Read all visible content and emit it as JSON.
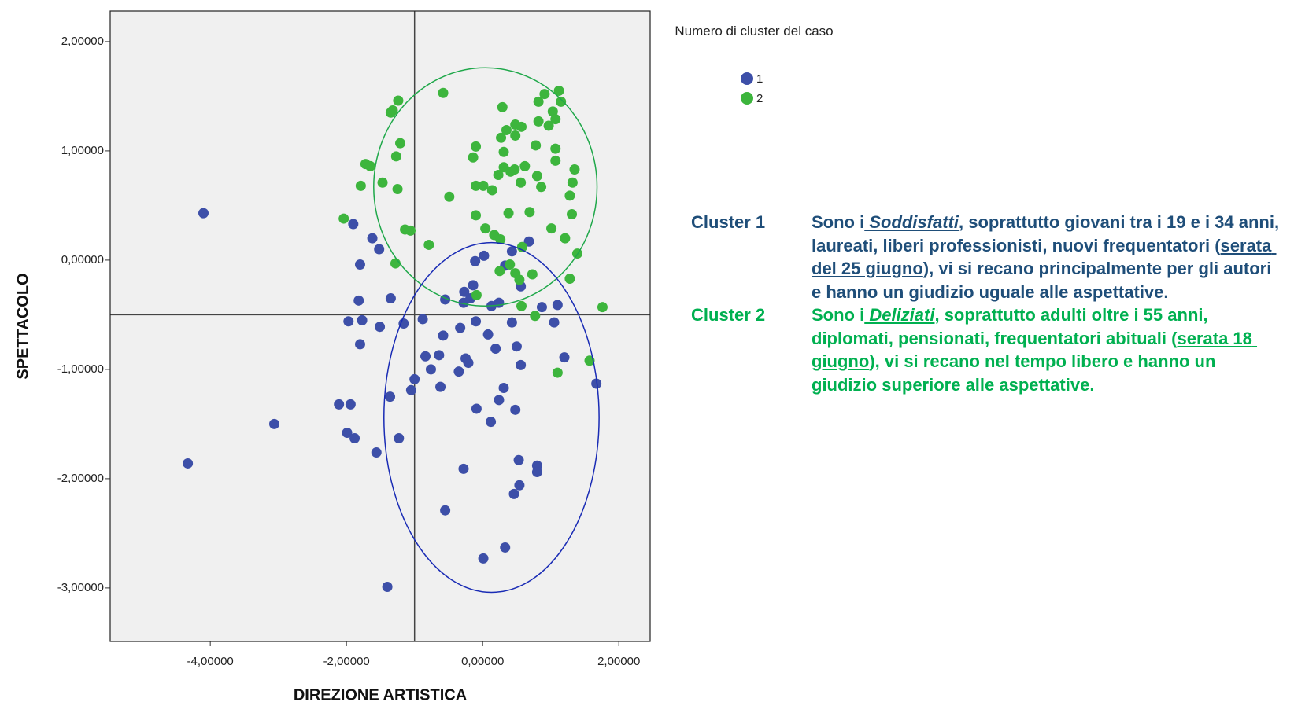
{
  "chart_data": {
    "type": "scatter",
    "xlabel": "DIREZIONE ARTISTICA",
    "ylabel": "SPETTACOLO",
    "xlim": [
      -5.47,
      2.46
    ],
    "ylim": [
      -3.49,
      2.28
    ],
    "xticks": [
      {
        "value": -4,
        "label": "-4,00000"
      },
      {
        "value": -2,
        "label": "-2,00000"
      },
      {
        "value": 0,
        "label": "0,00000"
      },
      {
        "value": 2,
        "label": "2,00000"
      }
    ],
    "yticks": [
      {
        "value": -3,
        "label": "-3,00000"
      },
      {
        "value": -2,
        "label": "-2,00000"
      },
      {
        "value": -1,
        "label": "-1,00000"
      },
      {
        "value": 0,
        "label": "0,00000"
      },
      {
        "value": 1,
        "label": "1,00000"
      },
      {
        "value": 2,
        "label": "2,00000"
      }
    ],
    "reference_lines": {
      "x": -1,
      "y": -0.5,
      "color": "#444444"
    },
    "legend_title": "Numero di cluster del caso",
    "series": [
      {
        "name": "1",
        "color": "#3d4fa8",
        "x": [
          -4.1,
          -4.33,
          -3.06,
          -1.4,
          -1.9,
          -1.62,
          -1.52,
          -1.8,
          -1.82,
          -1.77,
          -1.97,
          -1.8,
          -2.11,
          -1.94,
          -1.99,
          -1.88,
          -1.56,
          -1.35,
          -1.51,
          -1.16,
          -1.36,
          -1.23,
          -1.05,
          -0.88,
          -0.84,
          -1.0,
          -0.58,
          -0.76,
          -0.64,
          -0.62,
          -0.35,
          -0.21,
          -0.25,
          -0.55,
          -0.28,
          -0.18,
          -0.11,
          0.02,
          -0.14,
          -0.27,
          -0.1,
          0.08,
          0.19,
          0.24,
          0.33,
          0.43,
          0.68,
          0.56,
          0.43,
          0.5,
          0.56,
          0.31,
          0.24,
          -0.09,
          0.12,
          0.48,
          0.53,
          0.54,
          0.46,
          -0.28,
          -0.55,
          0.01,
          0.33,
          0.8,
          0.8,
          0.87,
          1.1,
          1.05,
          1.2,
          1.67,
          0.13,
          -0.33
        ],
        "y": [
          0.43,
          -1.86,
          -1.5,
          -2.99,
          0.33,
          0.2,
          0.1,
          -0.04,
          -0.37,
          -0.55,
          -0.56,
          -0.77,
          -1.32,
          -1.32,
          -1.58,
          -1.63,
          -1.76,
          -0.35,
          -0.61,
          -0.58,
          -1.25,
          -1.63,
          -1.19,
          -0.54,
          -0.88,
          -1.09,
          -0.69,
          -1.0,
          -0.87,
          -1.16,
          -1.02,
          -0.94,
          -0.9,
          -0.36,
          -0.39,
          -0.35,
          -0.01,
          0.04,
          -0.23,
          -0.29,
          -0.56,
          -0.68,
          -0.81,
          -0.39,
          -0.05,
          0.08,
          0.17,
          -0.24,
          -0.57,
          -0.79,
          -0.96,
          -1.17,
          -1.28,
          -1.36,
          -1.48,
          -1.37,
          -1.83,
          -2.06,
          -2.14,
          -1.91,
          -2.29,
          -2.73,
          -2.63,
          -1.88,
          -1.94,
          -0.43,
          -0.41,
          -0.57,
          -0.89,
          -1.13,
          -0.42,
          -0.62
        ]
      },
      {
        "name": "2",
        "color": "#3db53d",
        "x": [
          -1.72,
          -1.65,
          -1.47,
          -1.79,
          -1.25,
          -1.21,
          -1.27,
          -1.32,
          -1.24,
          -1.35,
          -2.04,
          -1.14,
          -1.06,
          -1.28,
          -0.79,
          -0.58,
          -0.49,
          -0.1,
          -0.14,
          -0.1,
          0.01,
          0.14,
          -0.1,
          0.04,
          0.29,
          0.27,
          0.35,
          0.48,
          0.57,
          0.48,
          0.31,
          0.31,
          0.23,
          0.41,
          0.56,
          0.62,
          0.8,
          0.86,
          0.69,
          0.38,
          0.17,
          0.26,
          0.4,
          0.58,
          0.73,
          0.48,
          0.25,
          -0.09,
          0.57,
          0.77,
          1.01,
          1.39,
          1.31,
          1.28,
          1.32,
          1.35,
          1.12,
          1.03,
          1.15,
          1.07,
          0.97,
          0.82,
          0.78,
          1.07,
          1.07,
          1.76,
          1.57,
          1.1,
          1.21,
          1.28,
          0.54,
          0.47,
          0.82,
          0.91
        ],
        "y": [
          0.88,
          0.86,
          0.71,
          0.68,
          0.65,
          1.07,
          0.95,
          1.37,
          1.46,
          1.35,
          0.38,
          0.28,
          0.27,
          -0.03,
          0.14,
          1.53,
          0.58,
          1.04,
          0.94,
          0.68,
          0.68,
          0.64,
          0.41,
          0.29,
          1.4,
          1.12,
          1.19,
          1.24,
          1.22,
          1.14,
          0.99,
          0.85,
          0.78,
          0.81,
          0.71,
          0.86,
          0.77,
          0.67,
          0.44,
          0.43,
          0.23,
          0.19,
          -0.04,
          0.12,
          -0.13,
          -0.12,
          -0.1,
          -0.32,
          -0.42,
          -0.51,
          0.29,
          0.06,
          0.42,
          0.59,
          0.71,
          0.83,
          1.55,
          1.36,
          1.45,
          1.29,
          1.23,
          1.27,
          1.05,
          1.02,
          0.91,
          -0.43,
          -0.92,
          -1.03,
          0.2,
          -0.17,
          -0.18,
          0.83,
          1.45,
          1.52
        ]
      }
    ],
    "ellipses": [
      {
        "cx": 0.04,
        "cy": 0.67,
        "rx": 1.64,
        "ry": 1.09,
        "color": "#1fa84a"
      },
      {
        "cx": 0.13,
        "cy": -1.44,
        "rx": 1.58,
        "ry": 1.6,
        "color": "#1a2cb5"
      }
    ],
    "annotations": [
      {
        "label": "Cluster 1",
        "color": "#1f4e79",
        "segments": [
          {
            "text": "Sono i",
            "style": "plain"
          },
          {
            "text": " Soddisfatti",
            "style": "italic-underline"
          },
          {
            "text": ", soprattutto giovani tra i 19 e i 34 anni, laureati, liberi professionisti, nuovi frequentatori (",
            "style": "plain"
          },
          {
            "text": "serata del 25 giugno",
            "style": "underline"
          },
          {
            "text": "), vi si recano principalmente per gli autori e hanno un giudizio uguale alle aspettative.",
            "style": "plain"
          }
        ]
      },
      {
        "label": "Cluster 2",
        "color": "#00b050",
        "segments": [
          {
            "text": "Sono i",
            "style": "plain"
          },
          {
            "text": " Deliziati",
            "style": "italic-underline"
          },
          {
            "text": ", soprattutto adulti oltre i 55 anni, diplomati, pensionati, frequentatori abituali (",
            "style": "plain"
          },
          {
            "text": "serata 18 giugno",
            "style": "underline"
          },
          {
            "text": "), vi si recano nel tempo libero e hanno un giudizio superiore alle aspettative.",
            "style": "plain"
          }
        ]
      }
    ]
  }
}
